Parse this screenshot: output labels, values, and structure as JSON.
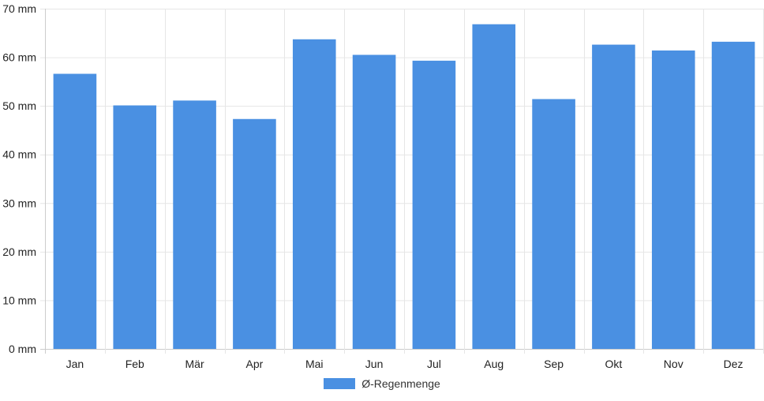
{
  "chart_data": {
    "type": "bar",
    "categories": [
      "Jan",
      "Feb",
      "Mär",
      "Apr",
      "Mai",
      "Jun",
      "Jul",
      "Aug",
      "Sep",
      "Okt",
      "Nov",
      "Dez"
    ],
    "series": [
      {
        "name": "Ø-Regenmenge",
        "values": [
          56.6,
          50.1,
          51.1,
          47.3,
          63.7,
          60.5,
          59.3,
          66.8,
          51.4,
          62.6,
          61.4,
          63.2
        ]
      }
    ],
    "y_ticks": [
      0,
      10,
      20,
      30,
      40,
      50,
      60,
      70
    ],
    "y_unit": "mm",
    "ylim": [
      0,
      70
    ],
    "grid": true,
    "legend_position": "bottom-center",
    "colors": {
      "bar": "#4a90e2",
      "grid": "#e6e6e6",
      "axis": "#cccccc"
    }
  },
  "legend": {
    "label": "Ø-Regenmenge"
  }
}
